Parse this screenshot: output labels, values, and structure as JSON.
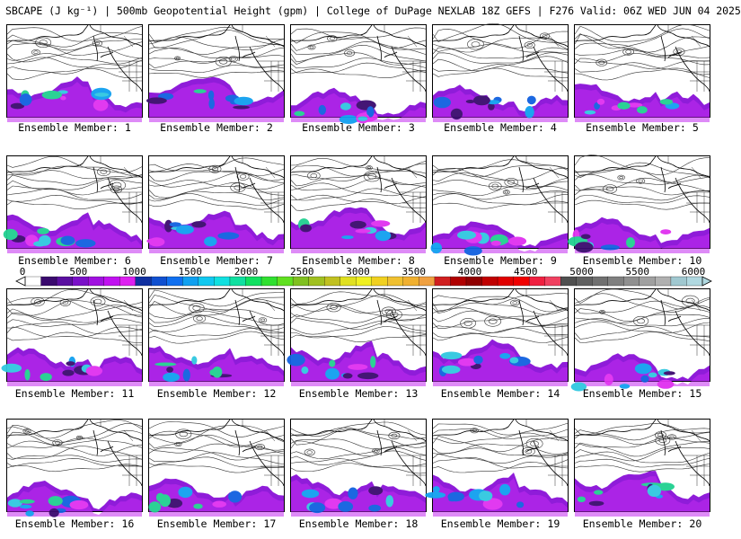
{
  "title": "SBCAPE (J kg⁻¹) | 500mb Geopotential Height (gpm) | College of DuPage NEXLAB 18Z GEFS | F276 Valid: 06Z WED JUN 04 2025",
  "panels": [
    {
      "label": "Ensemble Member: 1"
    },
    {
      "label": "Ensemble Member: 2"
    },
    {
      "label": "Ensemble Member: 3"
    },
    {
      "label": "Ensemble Member: 4"
    },
    {
      "label": "Ensemble Member: 5"
    },
    {
      "label": "Ensemble Member: 6"
    },
    {
      "label": "Ensemble Member: 7"
    },
    {
      "label": "Ensemble Member: 8"
    },
    {
      "label": "Ensemble Member: 9"
    },
    {
      "label": "Ensemble Member: 10"
    },
    {
      "label": "Ensemble Member: 11"
    },
    {
      "label": "Ensemble Member: 12"
    },
    {
      "label": "Ensemble Member: 13"
    },
    {
      "label": "Ensemble Member: 14"
    },
    {
      "label": "Ensemble Member: 15"
    },
    {
      "label": "Ensemble Member: 16"
    },
    {
      "label": "Ensemble Member: 17"
    },
    {
      "label": "Ensemble Member: 18"
    },
    {
      "label": "Ensemble Member: 19"
    },
    {
      "label": "Ensemble Member: 20"
    }
  ],
  "colorbar": {
    "labels": [
      "0",
      "500",
      "1000",
      "1500",
      "2000",
      "2500",
      "3000",
      "3500",
      "4000",
      "4500",
      "5000",
      "5500",
      "6000"
    ],
    "colors": [
      "#ffffff",
      "#3a0a6e",
      "#5a0fa0",
      "#7a10c8",
      "#a010e0",
      "#c010f0",
      "#dd20f0",
      "#1030a0",
      "#1050d0",
      "#1070f0",
      "#10a0f0",
      "#10c8f0",
      "#10e0e0",
      "#10e0a0",
      "#10e060",
      "#30e030",
      "#60e020",
      "#80c020",
      "#a0c020",
      "#c0c020",
      "#e0e020",
      "#f0f020",
      "#f0d020",
      "#f0c030",
      "#f0b030",
      "#f0a040",
      "#d02020",
      "#b00000",
      "#900000",
      "#c00000",
      "#e00000",
      "#f00000",
      "#f02040",
      "#f04060",
      "#505050",
      "#606060",
      "#707070",
      "#808080",
      "#909090",
      "#a0a0a0",
      "#b0b0b0",
      "#a0c8d0",
      "#b0d8e0"
    ]
  }
}
